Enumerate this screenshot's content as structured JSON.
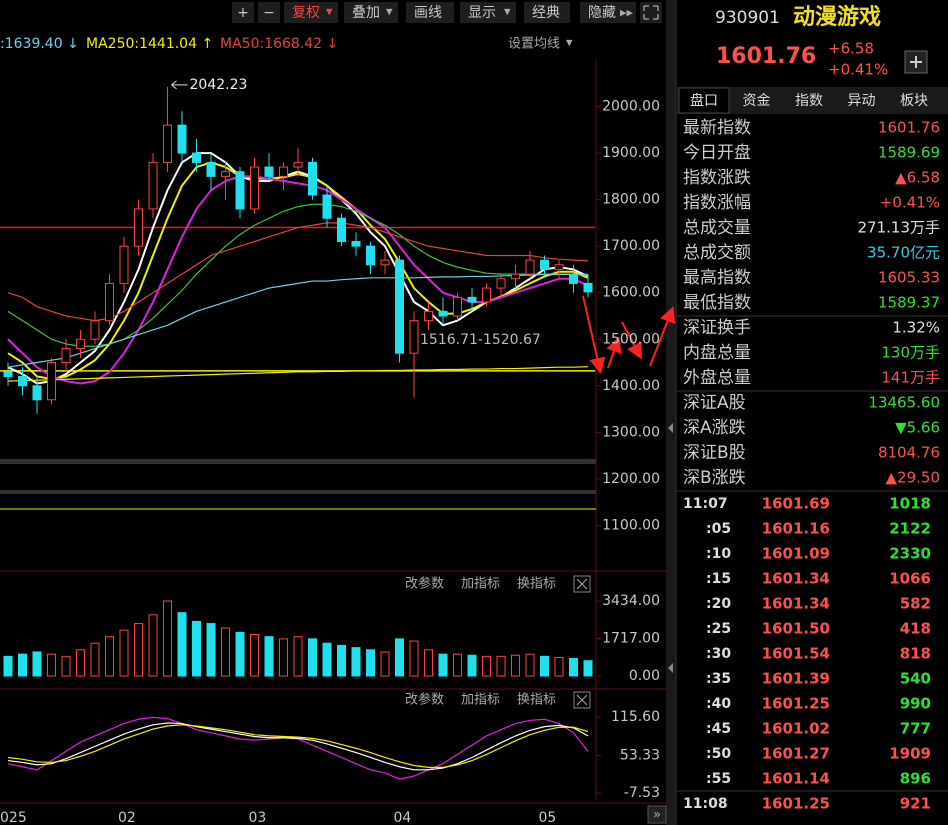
{
  "toolbar": {
    "buttons": [
      "+",
      "−",
      "复权",
      "叠加",
      "画线",
      "显示",
      "经典",
      "隐藏"
    ]
  },
  "ma_legend": [
    {
      "text": ":1639.40 ↓",
      "color": "#6fd0e8"
    },
    {
      "text": "MA250:1441.04 ↑",
      "color": "#f0f000"
    },
    {
      "text": "MA50:1668.42 ↓",
      "color": "#e84040"
    }
  ],
  "ma_setting": "设置均线",
  "kline": {
    "ylim": [
      1030,
      2100
    ],
    "yticks": [
      {
        "value": 2000,
        "label": "2000.00"
      },
      {
        "value": 1900,
        "label": "1900.00"
      },
      {
        "value": 1800,
        "label": "1800.00"
      },
      {
        "value": 1700,
        "label": "1700.00"
      },
      {
        "value": 1600,
        "label": "1600.00"
      },
      {
        "value": 1500,
        "label": "1500.00"
      },
      {
        "value": 1400,
        "label": "1400.00"
      },
      {
        "value": 1300,
        "label": "1300.00"
      },
      {
        "value": 1200,
        "label": "1200.00"
      },
      {
        "value": 1100,
        "label": "1100.00"
      }
    ],
    "range_label": "1516.71-1520.67",
    "dates": [
      "025",
      null,
      null,
      null,
      null,
      null,
      null,
      null,
      "02",
      null,
      null,
      null,
      null,
      null,
      null,
      null,
      null,
      "03",
      null,
      null,
      null,
      null,
      null,
      null,
      null,
      null,
      null,
      "04",
      null,
      null,
      null,
      null,
      null,
      null,
      null,
      null,
      null,
      "05",
      null,
      null,
      null
    ],
    "candles": [
      [
        1430,
        1450,
        1400,
        1420
      ],
      [
        1420,
        1440,
        1380,
        1400
      ],
      [
        1400,
        1420,
        1340,
        1370
      ],
      [
        1370,
        1460,
        1360,
        1450
      ],
      [
        1450,
        1500,
        1430,
        1480
      ],
      [
        1480,
        1520,
        1460,
        1500
      ],
      [
        1500,
        1560,
        1490,
        1540
      ],
      [
        1540,
        1640,
        1530,
        1620
      ],
      [
        1620,
        1720,
        1600,
        1700
      ],
      [
        1700,
        1800,
        1680,
        1780
      ],
      [
        1780,
        1900,
        1760,
        1880
      ],
      [
        1880,
        2042.23,
        1860,
        1960
      ],
      [
        1960,
        1990,
        1880,
        1900
      ],
      [
        1900,
        1930,
        1860,
        1880
      ],
      [
        1880,
        1900,
        1820,
        1850
      ],
      [
        1850,
        1880,
        1800,
        1860
      ],
      [
        1860,
        1870,
        1760,
        1780
      ],
      [
        1780,
        1890,
        1770,
        1870
      ],
      [
        1870,
        1900,
        1840,
        1850
      ],
      [
        1850,
        1880,
        1820,
        1870
      ],
      [
        1870,
        1910,
        1850,
        1880
      ],
      [
        1880,
        1890,
        1800,
        1810
      ],
      [
        1810,
        1830,
        1740,
        1760
      ],
      [
        1760,
        1770,
        1700,
        1710
      ],
      [
        1710,
        1730,
        1680,
        1700
      ],
      [
        1700,
        1710,
        1640,
        1660
      ],
      [
        1660,
        1690,
        1640,
        1670
      ],
      [
        1670,
        1680,
        1450,
        1470
      ],
      [
        1470,
        1560,
        1375,
        1540
      ],
      [
        1540,
        1580,
        1520,
        1560
      ],
      [
        1560,
        1590,
        1530,
        1550
      ],
      [
        1550,
        1600,
        1540,
        1590
      ],
      [
        1590,
        1610,
        1560,
        1580
      ],
      [
        1580,
        1620,
        1570,
        1610
      ],
      [
        1610,
        1640,
        1590,
        1630
      ],
      [
        1630,
        1660,
        1610,
        1640
      ],
      [
        1640,
        1690,
        1630,
        1670
      ],
      [
        1670,
        1680,
        1640,
        1650
      ],
      [
        1650,
        1670,
        1630,
        1660
      ],
      [
        1640,
        1660,
        1600,
        1620
      ],
      [
        1620,
        1640,
        1590,
        1601.76
      ]
    ],
    "lines": [
      {
        "color": "#ffffff",
        "values": [
          1440,
          1425,
          1405,
          1410,
          1425,
          1450,
          1475,
          1520,
          1580,
          1650,
          1740,
          1820,
          1880,
          1900,
          1900,
          1880,
          1850,
          1840,
          1840,
          1850,
          1860,
          1850,
          1830,
          1800,
          1770,
          1730,
          1700,
          1640,
          1580,
          1560,
          1530,
          1540,
          1560,
          1580,
          1590,
          1610,
          1630,
          1650,
          1655,
          1650,
          1635
        ]
      },
      {
        "color": "#f0f000",
        "values": [
          1470,
          1450,
          1420,
          1415,
          1420,
          1435,
          1455,
          1490,
          1540,
          1600,
          1680,
          1760,
          1830,
          1870,
          1880,
          1870,
          1850,
          1845,
          1845,
          1848,
          1855,
          1848,
          1830,
          1805,
          1780,
          1745,
          1715,
          1665,
          1610,
          1580,
          1555,
          1555,
          1565,
          1580,
          1592,
          1605,
          1620,
          1635,
          1645,
          1645,
          1632
        ]
      },
      {
        "color": "#e020e0",
        "values": [
          1500,
          1470,
          1440,
          1420,
          1410,
          1405,
          1410,
          1430,
          1470,
          1520,
          1580,
          1650,
          1720,
          1780,
          1820,
          1840,
          1850,
          1850,
          1845,
          1840,
          1835,
          1830,
          1820,
          1800,
          1780,
          1760,
          1740,
          1700,
          1660,
          1630,
          1600,
          1590,
          1580,
          1580,
          1590,
          1600,
          1610,
          1620,
          1630,
          1630,
          1615
        ]
      },
      {
        "color": "#40c040",
        "values": [
          1560,
          1540,
          1520,
          1500,
          1490,
          1485,
          1485,
          1490,
          1500,
          1520,
          1545,
          1575,
          1605,
          1640,
          1670,
          1700,
          1725,
          1745,
          1760,
          1775,
          1785,
          1790,
          1790,
          1785,
          1775,
          1760,
          1745,
          1725,
          1700,
          1680,
          1665,
          1655,
          1648,
          1642,
          1640,
          1640,
          1640,
          1640,
          1640,
          1640,
          1638
        ]
      },
      {
        "color": "#e84040",
        "values": [
          1600,
          1590,
          1570,
          1560,
          1550,
          1545,
          1540,
          1545,
          1560,
          1580,
          1600,
          1620,
          1640,
          1660,
          1680,
          1690,
          1700,
          1710,
          1720,
          1730,
          1740,
          1745,
          1750,
          1750,
          1745,
          1740,
          1730,
          1720,
          1710,
          1700,
          1695,
          1690,
          1685,
          1680,
          1680,
          1680,
          1680,
          1675,
          1672,
          1670,
          1668.42
        ]
      },
      {
        "color": "#6fd0e8",
        "values": [
          1440,
          1445,
          1450,
          1455,
          1460,
          1470,
          1480,
          1490,
          1500,
          1510,
          1520,
          1530,
          1545,
          1560,
          1570,
          1580,
          1590,
          1600,
          1610,
          1615,
          1620,
          1625,
          1625,
          1628,
          1630,
          1632,
          1632,
          1632,
          1632,
          1633,
          1634,
          1634,
          1635,
          1635,
          1636,
          1637,
          1638,
          1639,
          1639,
          1639.5,
          1639.4
        ]
      },
      {
        "color": "#f0f000",
        "values": [
          1410,
          1411,
          1412,
          1413,
          1414,
          1415,
          1416,
          1417,
          1418,
          1419,
          1420,
          1421,
          1422,
          1423,
          1424,
          1425,
          1426,
          1427,
          1428,
          1429,
          1430,
          1430,
          1431,
          1431,
          1432,
          1432,
          1433,
          1433,
          1434,
          1434,
          1435,
          1435,
          1436,
          1436,
          1437,
          1437,
          1438,
          1439,
          1440,
          1440,
          1441.04
        ]
      }
    ],
    "levels": [
      {
        "value": 1740,
        "color": "#e02020"
      },
      {
        "value": 1432,
        "color": "#f0f000"
      }
    ]
  },
  "volume": {
    "buttons": [
      "改参数",
      "加指标",
      "换指标"
    ],
    "ylim": [
      0,
      3434
    ],
    "yticks": [
      {
        "value": 3434,
        "label": "3434.00"
      },
      {
        "value": 1717,
        "label": "1717.00"
      },
      {
        "value": 0,
        "label": "0.00"
      }
    ],
    "values": [
      900,
      1000,
      1100,
      1000,
      900,
      1200,
      1500,
      1800,
      2100,
      2400,
      2800,
      3434,
      2900,
      2500,
      2400,
      2200,
      2000,
      1900,
      1800,
      1700,
      1800,
      1700,
      1500,
      1400,
      1300,
      1200,
      1100,
      1700,
      1600,
      1200,
      1000,
      1000,
      950,
      900,
      900,
      950,
      1000,
      900,
      850,
      800,
      700
    ]
  },
  "indicator": {
    "buttons": [
      "改参数",
      "加指标",
      "换指标"
    ],
    "ylim": [
      -7.53,
      115.6
    ],
    "yticks": [
      {
        "value": 115.6,
        "label": "115.60"
      },
      53.33,
      -7.53
    ],
    "lines": [
      {
        "color": "#e020e0",
        "values": [
          40,
          35,
          30,
          45,
          60,
          75,
          85,
          95,
          105,
          112,
          115,
          113,
          105,
          95,
          90,
          85,
          80,
          78,
          80,
          82,
          80,
          70,
          60,
          50,
          40,
          30,
          25,
          15,
          20,
          30,
          40,
          55,
          70,
          85,
          95,
          105,
          110,
          112,
          105,
          90,
          60
        ]
      },
      {
        "color": "#ffffff",
        "values": [
          45,
          42,
          38,
          40,
          48,
          58,
          68,
          78,
          88,
          96,
          103,
          106,
          105,
          100,
          96,
          92,
          88,
          84,
          82,
          82,
          81,
          78,
          72,
          65,
          58,
          50,
          42,
          35,
          30,
          30,
          33,
          40,
          50,
          62,
          74,
          85,
          94,
          100,
          102,
          98,
          85
        ]
      },
      {
        "color": "#f0f000",
        "values": [
          50,
          47,
          43,
          42,
          45,
          52,
          60,
          70,
          80,
          88,
          96,
          101,
          103,
          101,
          98,
          95,
          91,
          87,
          85,
          84,
          83,
          81,
          77,
          71,
          65,
          58,
          50,
          43,
          37,
          34,
          34,
          38,
          45,
          55,
          66,
          77,
          87,
          94,
          99,
          99,
          92
        ]
      }
    ]
  },
  "quote": {
    "code": "930901",
    "name": "动漫游戏",
    "price": "1601.76",
    "change": "+6.58",
    "pct": "+0.41%"
  },
  "tabs": [
    "盘口",
    "资金",
    "指数",
    "异动",
    "板块"
  ],
  "stats": [
    {
      "label": "最新指数",
      "value": "1601.76",
      "color": "#ff5050"
    },
    {
      "label": "今日开盘",
      "value": "1589.69",
      "color": "#30e030"
    },
    {
      "label": "指数涨跌",
      "value": "▲6.58",
      "color": "#ff5050"
    },
    {
      "label": "指数涨幅",
      "value": "+0.41%",
      "color": "#ff5050"
    },
    {
      "label": "总成交量",
      "value": "271.13万手",
      "color": "#e0e0e0"
    },
    {
      "label": "总成交额",
      "value": "35.70亿元",
      "color": "#30d0e0"
    },
    {
      "label": "最高指数",
      "value": "1605.33",
      "color": "#ff5050"
    },
    {
      "label": "最低指数",
      "value": "1589.37",
      "color": "#30e030"
    },
    {
      "label": "深证换手",
      "value": "1.32%",
      "color": "#e0e0e0"
    },
    {
      "label": "内盘总量",
      "value": "130万手",
      "color": "#30e030"
    },
    {
      "label": "外盘总量",
      "value": "141万手",
      "color": "#ff5050"
    },
    {
      "label": "深证A股",
      "value": "13465.60",
      "color": "#30e030"
    },
    {
      "label": "深A涨跌",
      "value": "▼5.66",
      "color": "#30e030"
    },
    {
      "label": "深证B股",
      "value": "8104.76",
      "color": "#ff5050"
    },
    {
      "label": "深B涨跌",
      "value": "▲29.50",
      "color": "#ff5050"
    }
  ],
  "trades": [
    {
      "time": "11:07",
      "price": "1601.69",
      "volume": "1018",
      "color": "#30e030"
    },
    {
      "time": ":05",
      "price": "1601.16",
      "volume": "2122",
      "color": "#30e030"
    },
    {
      "time": ":10",
      "price": "1601.09",
      "volume": "2330",
      "color": "#30e030"
    },
    {
      "time": ":15",
      "price": "1601.34",
      "volume": "1066",
      "color": "#ff5050"
    },
    {
      "time": ":20",
      "price": "1601.34",
      "volume": "582",
      "color": "#ff5050"
    },
    {
      "time": ":25",
      "price": "1601.50",
      "volume": "418",
      "color": "#ff5050"
    },
    {
      "time": ":30",
      "price": "1601.54",
      "volume": "818",
      "color": "#ff5050"
    },
    {
      "time": ":35",
      "price": "1601.39",
      "volume": "540",
      "color": "#30e030"
    },
    {
      "time": ":40",
      "price": "1601.25",
      "volume": "990",
      "color": "#30e030"
    },
    {
      "time": ":45",
      "price": "1601.02",
      "volume": "777",
      "color": "#30e030"
    },
    {
      "time": ":50",
      "price": "1601.27",
      "volume": "1909",
      "color": "#ff5050"
    },
    {
      "time": ":55",
      "price": "1601.14",
      "volume": "896",
      "color": "#30e030"
    },
    {
      "time": "11:08",
      "price": "1601.25",
      "volume": "921",
      "color": "#ff5050"
    }
  ]
}
